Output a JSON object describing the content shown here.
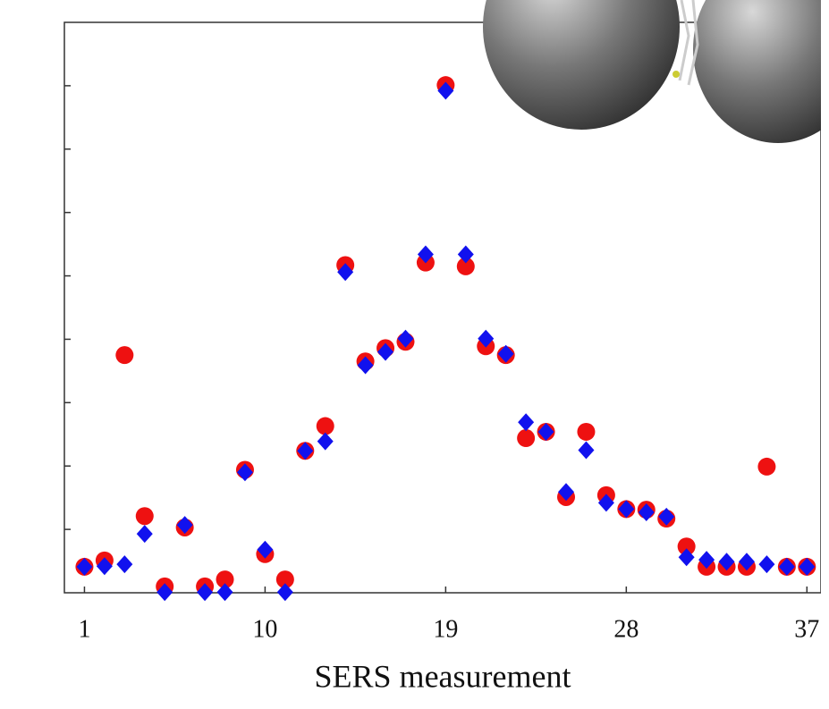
{
  "chart_data": {
    "type": "scatter",
    "xlabel": "SERS measurement",
    "x": [
      1,
      2,
      3,
      4,
      5,
      6,
      7,
      8,
      9,
      10,
      11,
      12,
      13,
      14,
      15,
      16,
      17,
      18,
      19,
      20,
      21,
      22,
      23,
      24,
      25,
      26,
      27,
      28,
      29,
      30,
      31,
      32,
      33,
      34,
      35,
      36,
      37
    ],
    "series": [
      {
        "color": "#ee1111",
        "marker": "circle",
        "values": [
          0.41,
          0.51,
          3.75,
          1.21,
          0.1,
          1.03,
          0.1,
          0.21,
          1.94,
          0.61,
          0.21,
          2.24,
          2.63,
          5.17,
          3.65,
          3.86,
          3.96,
          5.21,
          8.01,
          5.15,
          3.89,
          3.75,
          2.44,
          2.54,
          1.51,
          2.54,
          1.54,
          1.32,
          1.31,
          1.17,
          0.73,
          0.41,
          0.41,
          0.41,
          1.99,
          0.41,
          0.41
        ]
      },
      {
        "color": "#1111ee",
        "marker": "diamond",
        "values": [
          0.41,
          0.42,
          0.45,
          0.93,
          0.01,
          1.07,
          0.01,
          0.01,
          1.9,
          0.68,
          0.01,
          2.24,
          2.39,
          5.06,
          3.59,
          3.8,
          4.01,
          5.34,
          7.92,
          5.34,
          4.01,
          3.77,
          2.69,
          2.54,
          1.59,
          2.25,
          1.42,
          1.32,
          1.27,
          1.2,
          0.56,
          0.52,
          0.49,
          0.49,
          0.45,
          0.41,
          0.41
        ]
      }
    ],
    "xlim": [
      0,
      37.7
    ],
    "xticks": [
      1,
      10,
      19,
      28,
      37
    ],
    "ylim": [
      0,
      9
    ],
    "yticks": [
      1,
      2,
      3,
      4,
      5,
      6,
      7,
      8
    ]
  }
}
